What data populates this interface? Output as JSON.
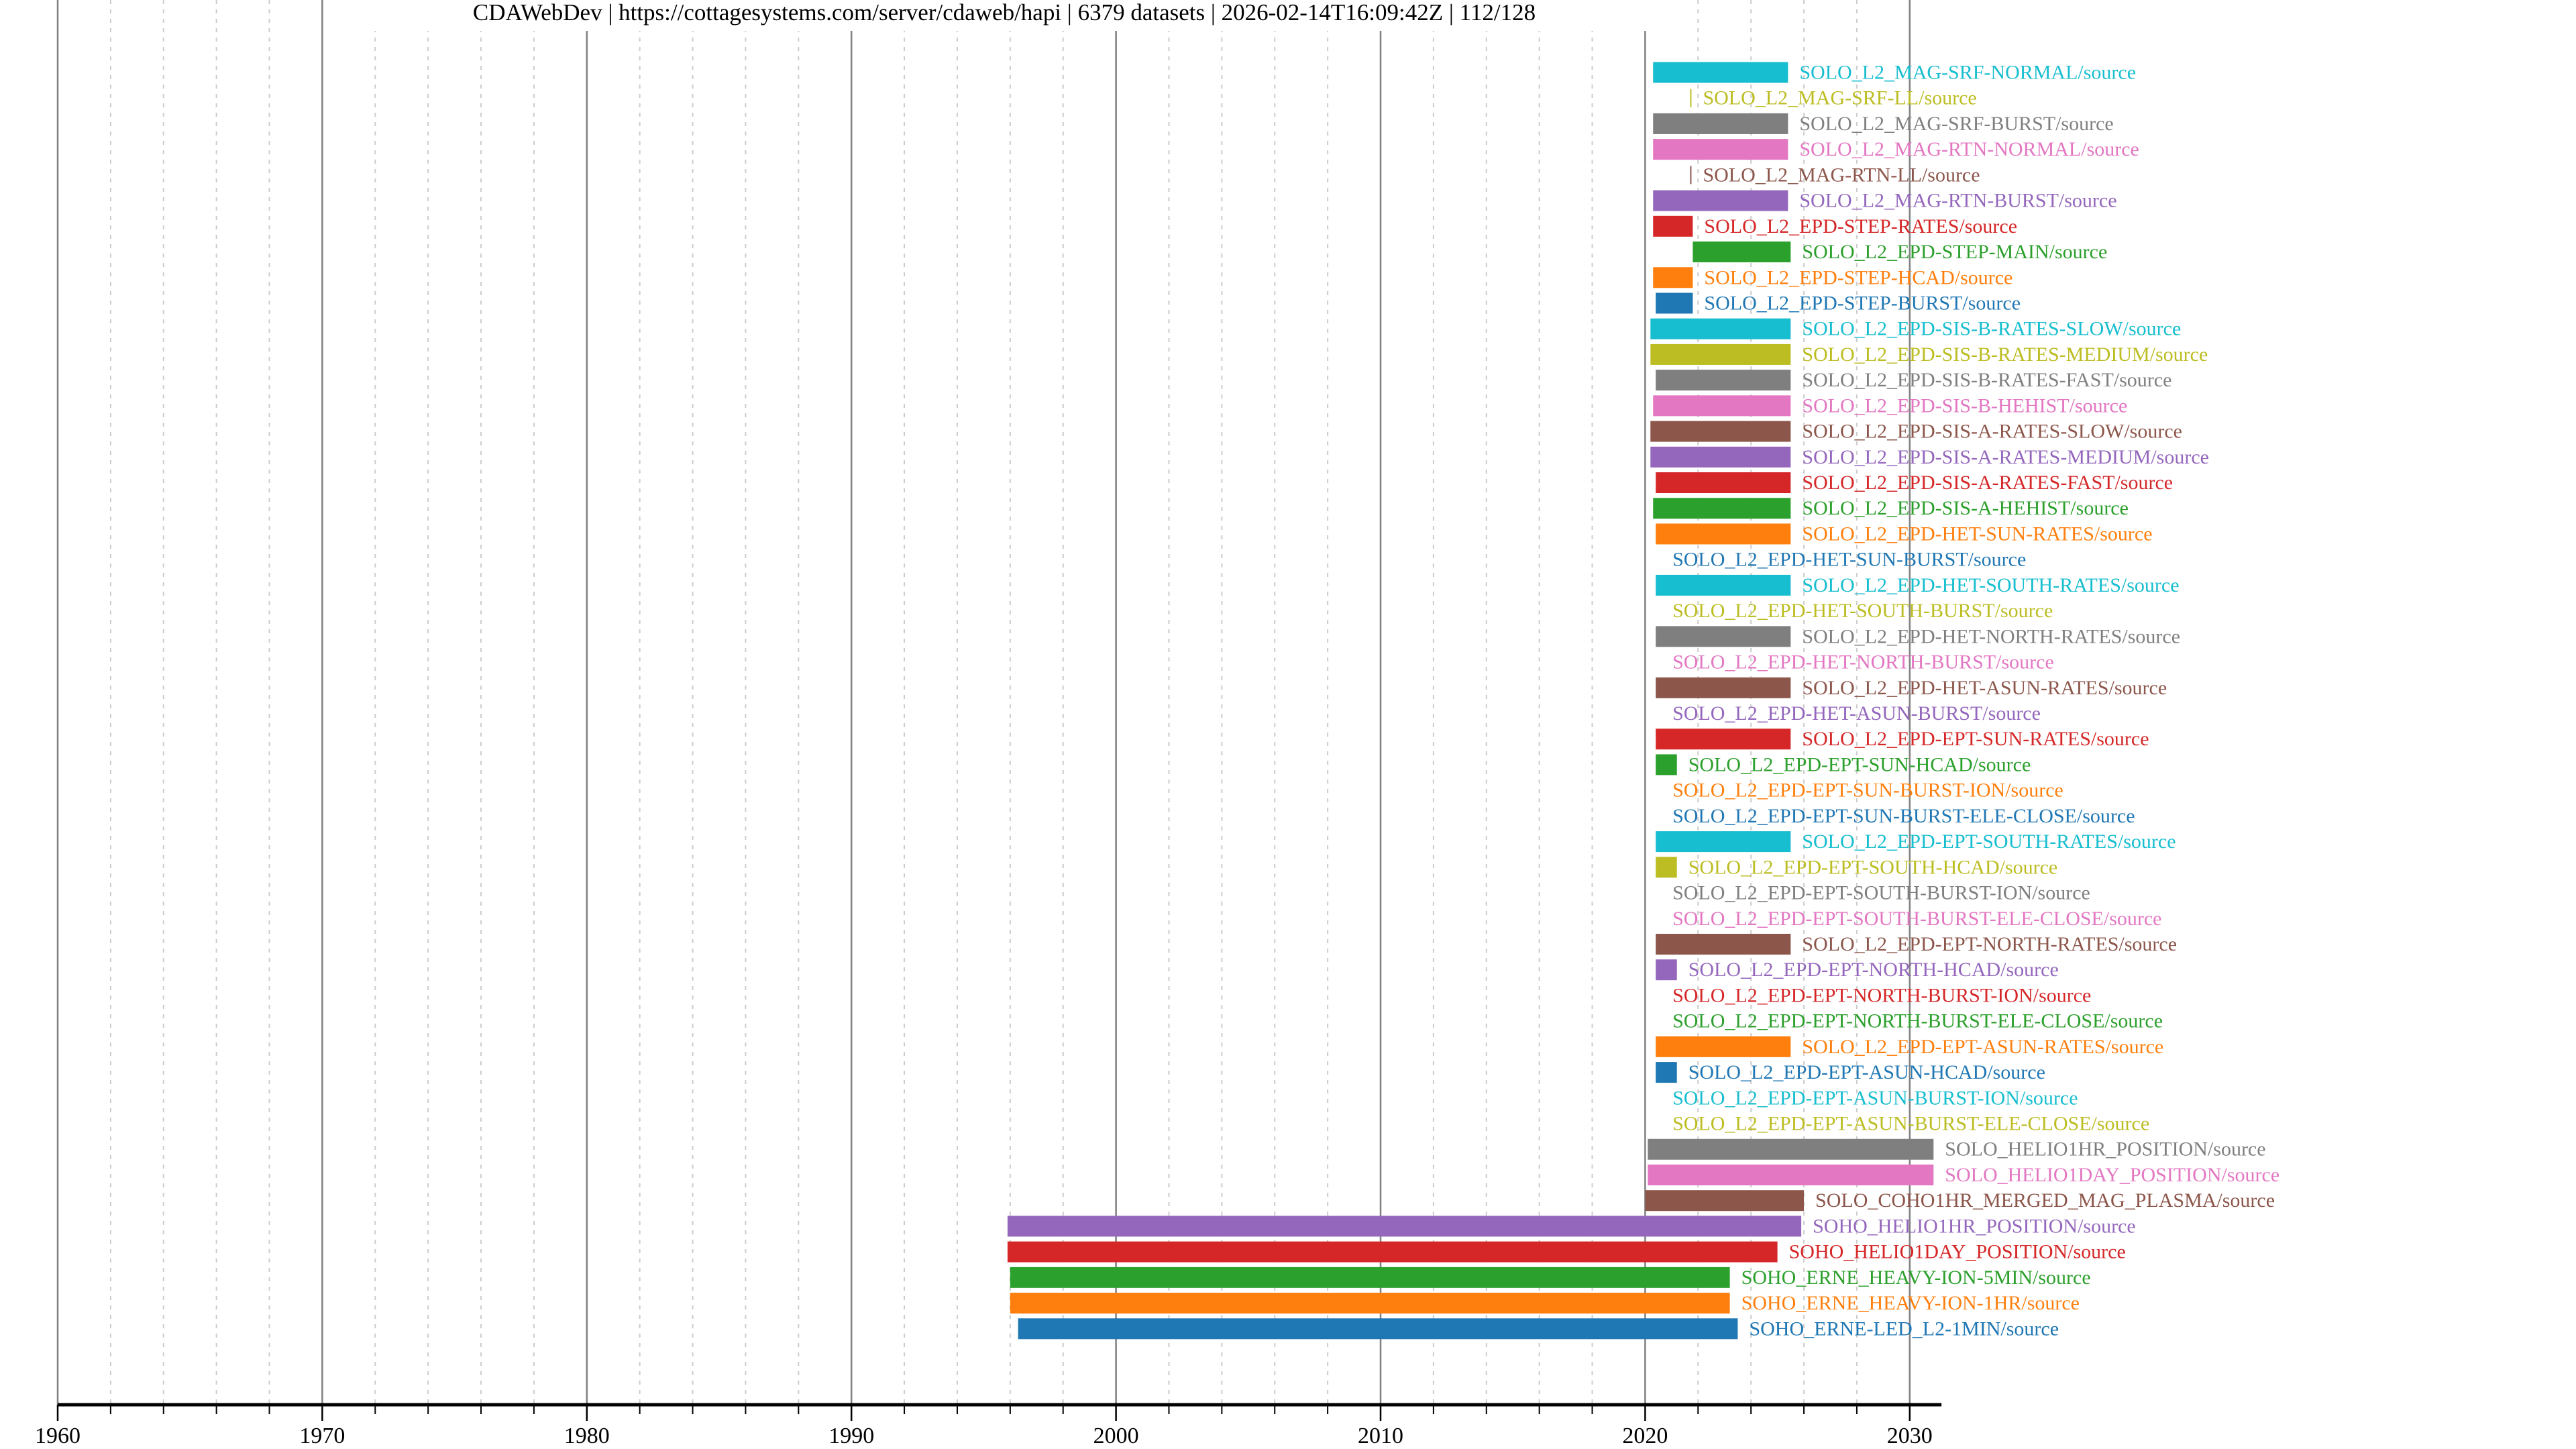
{
  "chart_data": {
    "type": "gantt",
    "title": "CDAWebDev | https://cottagesystems.com/server/cdaweb/hapi | 6379 datasets | 2026-02-14T16:09:42Z | 112/128",
    "xlabel": "",
    "ylabel": "",
    "xlim": [
      1960,
      2031.2
    ],
    "x_ticks": [
      "1960",
      "1970",
      "1980",
      "1990",
      "2000",
      "2010",
      "2020",
      "2030"
    ],
    "minor_tick_step_years": 2,
    "grid": true,
    "palette": [
      "#17becf",
      "#bcbd22",
      "#7f7f7f",
      "#e377c2",
      "#8c564b",
      "#9467bd",
      "#d62728",
      "#2ca02c",
      "#ff7f0e",
      "#1f77b4"
    ],
    "series": [
      {
        "name": "SOLO_L2_MAG-SRF-NORMAL/source",
        "start": 2020.3,
        "end": 2025.4
      },
      {
        "name": "SOLO_L2_MAG-SRF-LL/source",
        "start": 2021.7,
        "end": 2021.72
      },
      {
        "name": "SOLO_L2_MAG-SRF-BURST/source",
        "start": 2020.3,
        "end": 2025.4
      },
      {
        "name": "SOLO_L2_MAG-RTN-NORMAL/source",
        "start": 2020.3,
        "end": 2025.4
      },
      {
        "name": "SOLO_L2_MAG-RTN-LL/source",
        "start": 2021.7,
        "end": 2021.72
      },
      {
        "name": "SOLO_L2_MAG-RTN-BURST/source",
        "start": 2020.3,
        "end": 2025.4
      },
      {
        "name": "SOLO_L2_EPD-STEP-RATES/source",
        "start": 2020.3,
        "end": 2021.8
      },
      {
        "name": "SOLO_L2_EPD-STEP-MAIN/source",
        "start": 2021.8,
        "end": 2025.5
      },
      {
        "name": "SOLO_L2_EPD-STEP-HCAD/source",
        "start": 2020.3,
        "end": 2021.8
      },
      {
        "name": "SOLO_L2_EPD-STEP-BURST/source",
        "start": 2020.4,
        "end": 2021.8
      },
      {
        "name": "SOLO_L2_EPD-SIS-B-RATES-SLOW/source",
        "start": 2020.2,
        "end": 2025.5
      },
      {
        "name": "SOLO_L2_EPD-SIS-B-RATES-MEDIUM/source",
        "start": 2020.2,
        "end": 2025.5
      },
      {
        "name": "SOLO_L2_EPD-SIS-B-RATES-FAST/source",
        "start": 2020.4,
        "end": 2025.5
      },
      {
        "name": "SOLO_L2_EPD-SIS-B-HEHIST/source",
        "start": 2020.3,
        "end": 2025.5
      },
      {
        "name": "SOLO_L2_EPD-SIS-A-RATES-SLOW/source",
        "start": 2020.2,
        "end": 2025.5
      },
      {
        "name": "SOLO_L2_EPD-SIS-A-RATES-MEDIUM/source",
        "start": 2020.2,
        "end": 2025.5
      },
      {
        "name": "SOLO_L2_EPD-SIS-A-RATES-FAST/source",
        "start": 2020.4,
        "end": 2025.5
      },
      {
        "name": "SOLO_L2_EPD-SIS-A-HEHIST/source",
        "start": 2020.3,
        "end": 2025.5
      },
      {
        "name": "SOLO_L2_EPD-HET-SUN-RATES/source",
        "start": 2020.4,
        "end": 2025.5
      },
      {
        "name": "SOLO_L2_EPD-HET-SUN-BURST/source",
        "start": null,
        "end": null
      },
      {
        "name": "SOLO_L2_EPD-HET-SOUTH-RATES/source",
        "start": 2020.4,
        "end": 2025.5
      },
      {
        "name": "SOLO_L2_EPD-HET-SOUTH-BURST/source",
        "start": null,
        "end": null
      },
      {
        "name": "SOLO_L2_EPD-HET-NORTH-RATES/source",
        "start": 2020.4,
        "end": 2025.5
      },
      {
        "name": "SOLO_L2_EPD-HET-NORTH-BURST/source",
        "start": null,
        "end": null
      },
      {
        "name": "SOLO_L2_EPD-HET-ASUN-RATES/source",
        "start": 2020.4,
        "end": 2025.5
      },
      {
        "name": "SOLO_L2_EPD-HET-ASUN-BURST/source",
        "start": null,
        "end": null
      },
      {
        "name": "SOLO_L2_EPD-EPT-SUN-RATES/source",
        "start": 2020.4,
        "end": 2025.5
      },
      {
        "name": "SOLO_L2_EPD-EPT-SUN-HCAD/source",
        "start": 2020.4,
        "end": 2021.2
      },
      {
        "name": "SOLO_L2_EPD-EPT-SUN-BURST-ION/source",
        "start": null,
        "end": null
      },
      {
        "name": "SOLO_L2_EPD-EPT-SUN-BURST-ELE-CLOSE/source",
        "start": null,
        "end": null
      },
      {
        "name": "SOLO_L2_EPD-EPT-SOUTH-RATES/source",
        "start": 2020.4,
        "end": 2025.5
      },
      {
        "name": "SOLO_L2_EPD-EPT-SOUTH-HCAD/source",
        "start": 2020.4,
        "end": 2021.2
      },
      {
        "name": "SOLO_L2_EPD-EPT-SOUTH-BURST-ION/source",
        "start": null,
        "end": null
      },
      {
        "name": "SOLO_L2_EPD-EPT-SOUTH-BURST-ELE-CLOSE/source",
        "start": null,
        "end": null
      },
      {
        "name": "SOLO_L2_EPD-EPT-NORTH-RATES/source",
        "start": 2020.4,
        "end": 2025.5
      },
      {
        "name": "SOLO_L2_EPD-EPT-NORTH-HCAD/source",
        "start": 2020.4,
        "end": 2021.2
      },
      {
        "name": "SOLO_L2_EPD-EPT-NORTH-BURST-ION/source",
        "start": null,
        "end": null
      },
      {
        "name": "SOLO_L2_EPD-EPT-NORTH-BURST-ELE-CLOSE/source",
        "start": null,
        "end": null
      },
      {
        "name": "SOLO_L2_EPD-EPT-ASUN-RATES/source",
        "start": 2020.4,
        "end": 2025.5
      },
      {
        "name": "SOLO_L2_EPD-EPT-ASUN-HCAD/source",
        "start": 2020.4,
        "end": 2021.2
      },
      {
        "name": "SOLO_L2_EPD-EPT-ASUN-BURST-ION/source",
        "start": null,
        "end": null
      },
      {
        "name": "SOLO_L2_EPD-EPT-ASUN-BURST-ELE-CLOSE/source",
        "start": null,
        "end": null
      },
      {
        "name": "SOLO_HELIO1HR_POSITION/source",
        "start": 2020.1,
        "end": 2030.9
      },
      {
        "name": "SOLO_HELIO1DAY_POSITION/source",
        "start": 2020.1,
        "end": 2030.9
      },
      {
        "name": "SOLO_COHO1HR_MERGED_MAG_PLASMA/source",
        "start": 2020.0,
        "end": 2026.0
      },
      {
        "name": "SOHO_HELIO1HR_POSITION/source",
        "start": 1995.9,
        "end": 2025.9
      },
      {
        "name": "SOHO_HELIO1DAY_POSITION/source",
        "start": 1995.9,
        "end": 2025.0
      },
      {
        "name": "SOHO_ERNE_HEAVY-ION-5MIN/source",
        "start": 1996.0,
        "end": 2023.2
      },
      {
        "name": "SOHO_ERNE_HEAVY-ION-1HR/source",
        "start": 1996.0,
        "end": 2023.2
      },
      {
        "name": "SOHO_ERNE-LED_L2-1MIN/source",
        "start": 1996.3,
        "end": 2023.5
      }
    ]
  }
}
